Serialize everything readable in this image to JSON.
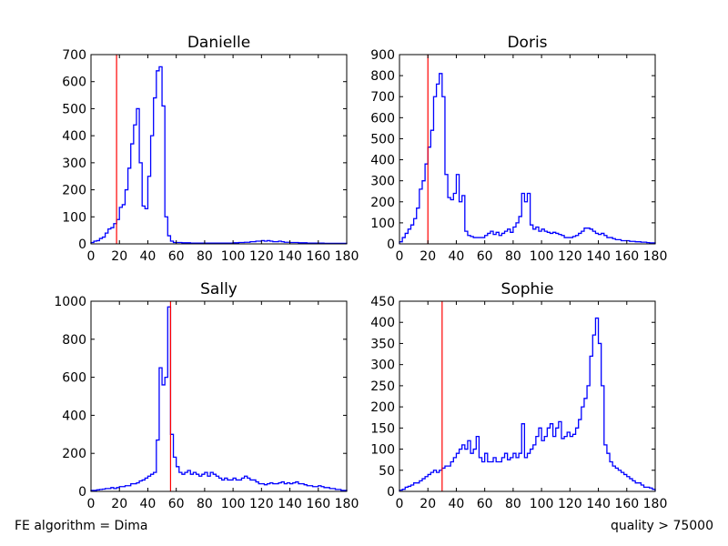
{
  "footer": {
    "left": "FE algorithm = Dima",
    "right": "quality > 75000"
  },
  "colors": {
    "series": "#0000ff",
    "marker_line": "#ff0000"
  },
  "chart_data": [
    {
      "type": "line",
      "style": "step-histogram",
      "title": "Danielle",
      "bin_width": 2,
      "xlim": [
        0,
        180
      ],
      "ylim": [
        0,
        700
      ],
      "xticks": [
        0,
        20,
        40,
        60,
        80,
        100,
        120,
        140,
        160,
        180
      ],
      "yticks": [
        0,
        100,
        200,
        300,
        400,
        500,
        600,
        700
      ],
      "vline": 18,
      "values": [
        5,
        10,
        12,
        20,
        25,
        40,
        55,
        60,
        75,
        90,
        135,
        145,
        200,
        280,
        370,
        440,
        500,
        300,
        140,
        130,
        250,
        400,
        540,
        640,
        655,
        510,
        100,
        30,
        10,
        5,
        5,
        5,
        4,
        4,
        4,
        3,
        3,
        3,
        3,
        3,
        3,
        3,
        3,
        3,
        3,
        3,
        3,
        3,
        3,
        3,
        4,
        4,
        5,
        5,
        6,
        6,
        8,
        8,
        10,
        10,
        12,
        10,
        12,
        10,
        8,
        8,
        10,
        8,
        6,
        6,
        5,
        5,
        5,
        4,
        4,
        4,
        3,
        3,
        3,
        3,
        3,
        3,
        2,
        2,
        2,
        2,
        2,
        2,
        2,
        2
      ]
    },
    {
      "type": "line",
      "style": "step-histogram",
      "title": "Doris",
      "bin_width": 2,
      "xlim": [
        0,
        180
      ],
      "ylim": [
        0,
        900
      ],
      "xticks": [
        0,
        20,
        40,
        60,
        80,
        100,
        120,
        140,
        160,
        180
      ],
      "yticks": [
        0,
        100,
        200,
        300,
        400,
        500,
        600,
        700,
        800,
        900
      ],
      "vline": 20,
      "values": [
        10,
        30,
        50,
        70,
        90,
        120,
        170,
        260,
        300,
        380,
        460,
        540,
        700,
        760,
        810,
        700,
        330,
        220,
        210,
        240,
        330,
        200,
        230,
        60,
        40,
        35,
        30,
        30,
        30,
        30,
        40,
        50,
        60,
        45,
        55,
        40,
        50,
        60,
        70,
        55,
        80,
        100,
        130,
        240,
        200,
        240,
        90,
        70,
        80,
        60,
        70,
        60,
        55,
        50,
        55,
        50,
        45,
        40,
        30,
        30,
        30,
        35,
        40,
        50,
        60,
        75,
        75,
        70,
        60,
        50,
        45,
        50,
        40,
        30,
        30,
        25,
        20,
        20,
        15,
        15,
        15,
        12,
        12,
        10,
        10,
        8,
        8,
        6,
        5,
        5
      ]
    },
    {
      "type": "line",
      "style": "step-histogram",
      "title": "Sally",
      "bin_width": 2,
      "xlim": [
        0,
        180
      ],
      "ylim": [
        0,
        1000
      ],
      "xticks": [
        0,
        20,
        40,
        60,
        80,
        100,
        120,
        140,
        160,
        180
      ],
      "yticks": [
        0,
        200,
        400,
        600,
        800,
        1000
      ],
      "vline": 56,
      "values": [
        5,
        5,
        8,
        10,
        12,
        15,
        15,
        20,
        15,
        20,
        25,
        25,
        30,
        30,
        40,
        40,
        45,
        55,
        60,
        70,
        80,
        90,
        100,
        270,
        650,
        560,
        600,
        970,
        300,
        180,
        130,
        100,
        90,
        100,
        110,
        90,
        100,
        90,
        80,
        90,
        100,
        80,
        100,
        90,
        80,
        70,
        60,
        70,
        60,
        60,
        70,
        60,
        60,
        70,
        80,
        70,
        60,
        60,
        50,
        40,
        40,
        35,
        40,
        45,
        40,
        40,
        45,
        50,
        40,
        45,
        40,
        45,
        50,
        40,
        40,
        35,
        30,
        30,
        25,
        25,
        30,
        25,
        20,
        20,
        15,
        15,
        10,
        10,
        5,
        5
      ]
    },
    {
      "type": "line",
      "style": "step-histogram",
      "title": "Sophie",
      "bin_width": 2,
      "xlim": [
        0,
        180
      ],
      "ylim": [
        0,
        450
      ],
      "xticks": [
        0,
        20,
        40,
        60,
        80,
        100,
        120,
        140,
        160,
        180
      ],
      "yticks": [
        0,
        50,
        100,
        150,
        200,
        250,
        300,
        350,
        400,
        450
      ],
      "vline": 30,
      "values": [
        3,
        5,
        10,
        12,
        15,
        20,
        20,
        25,
        30,
        35,
        40,
        45,
        50,
        45,
        50,
        55,
        60,
        60,
        70,
        80,
        90,
        100,
        110,
        100,
        120,
        90,
        100,
        130,
        80,
        70,
        90,
        70,
        70,
        80,
        70,
        70,
        80,
        90,
        75,
        80,
        90,
        80,
        90,
        160,
        80,
        90,
        100,
        110,
        130,
        150,
        120,
        130,
        150,
        160,
        130,
        150,
        165,
        125,
        130,
        140,
        130,
        135,
        150,
        170,
        200,
        220,
        250,
        320,
        370,
        410,
        350,
        250,
        110,
        90,
        70,
        60,
        55,
        50,
        45,
        40,
        35,
        30,
        25,
        20,
        20,
        15,
        10,
        10,
        8,
        5
      ]
    }
  ]
}
